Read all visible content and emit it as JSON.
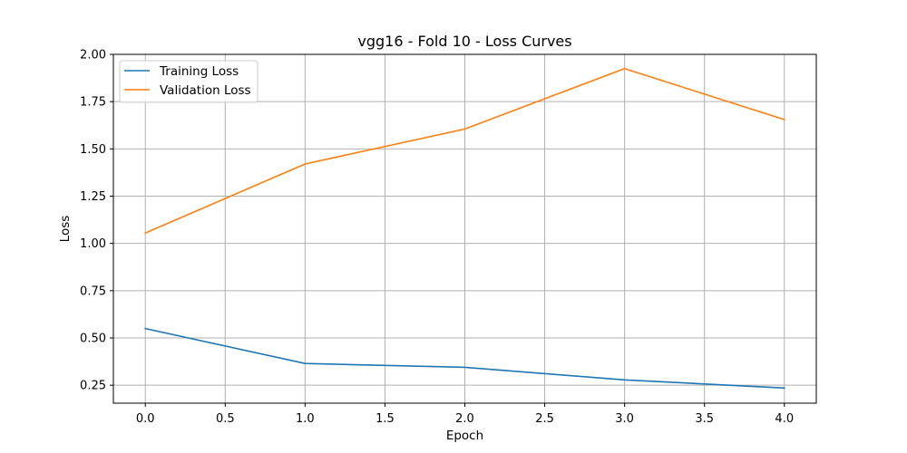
{
  "chart_data": {
    "type": "line",
    "title": "vgg16 - Fold 10 - Loss Curves",
    "xlabel": "Epoch",
    "ylabel": "Loss",
    "x": [
      0,
      1,
      2,
      3,
      4
    ],
    "xlim": [
      -0.2,
      4.2
    ],
    "ylim": [
      0.155,
      2.0
    ],
    "xticks": [
      0.0,
      0.5,
      1.0,
      1.5,
      2.0,
      2.5,
      3.0,
      3.5,
      4.0
    ],
    "xtick_labels": [
      "0.0",
      "0.5",
      "1.0",
      "1.5",
      "2.0",
      "2.5",
      "3.0",
      "3.5",
      "4.0"
    ],
    "yticks": [
      0.25,
      0.5,
      0.75,
      1.0,
      1.25,
      1.5,
      1.75,
      2.0
    ],
    "ytick_labels": [
      "0.25",
      "0.50",
      "0.75",
      "1.00",
      "1.25",
      "1.50",
      "1.75",
      "2.00"
    ],
    "grid": true,
    "legend_position": "top-left",
    "series": [
      {
        "name": "Training Loss",
        "color": "#1f77b4",
        "values": [
          0.55,
          0.365,
          0.345,
          0.278,
          0.235
        ]
      },
      {
        "name": "Validation Loss",
        "color": "#ff7f0e",
        "values": [
          1.055,
          1.42,
          1.605,
          1.925,
          1.655
        ]
      }
    ]
  }
}
